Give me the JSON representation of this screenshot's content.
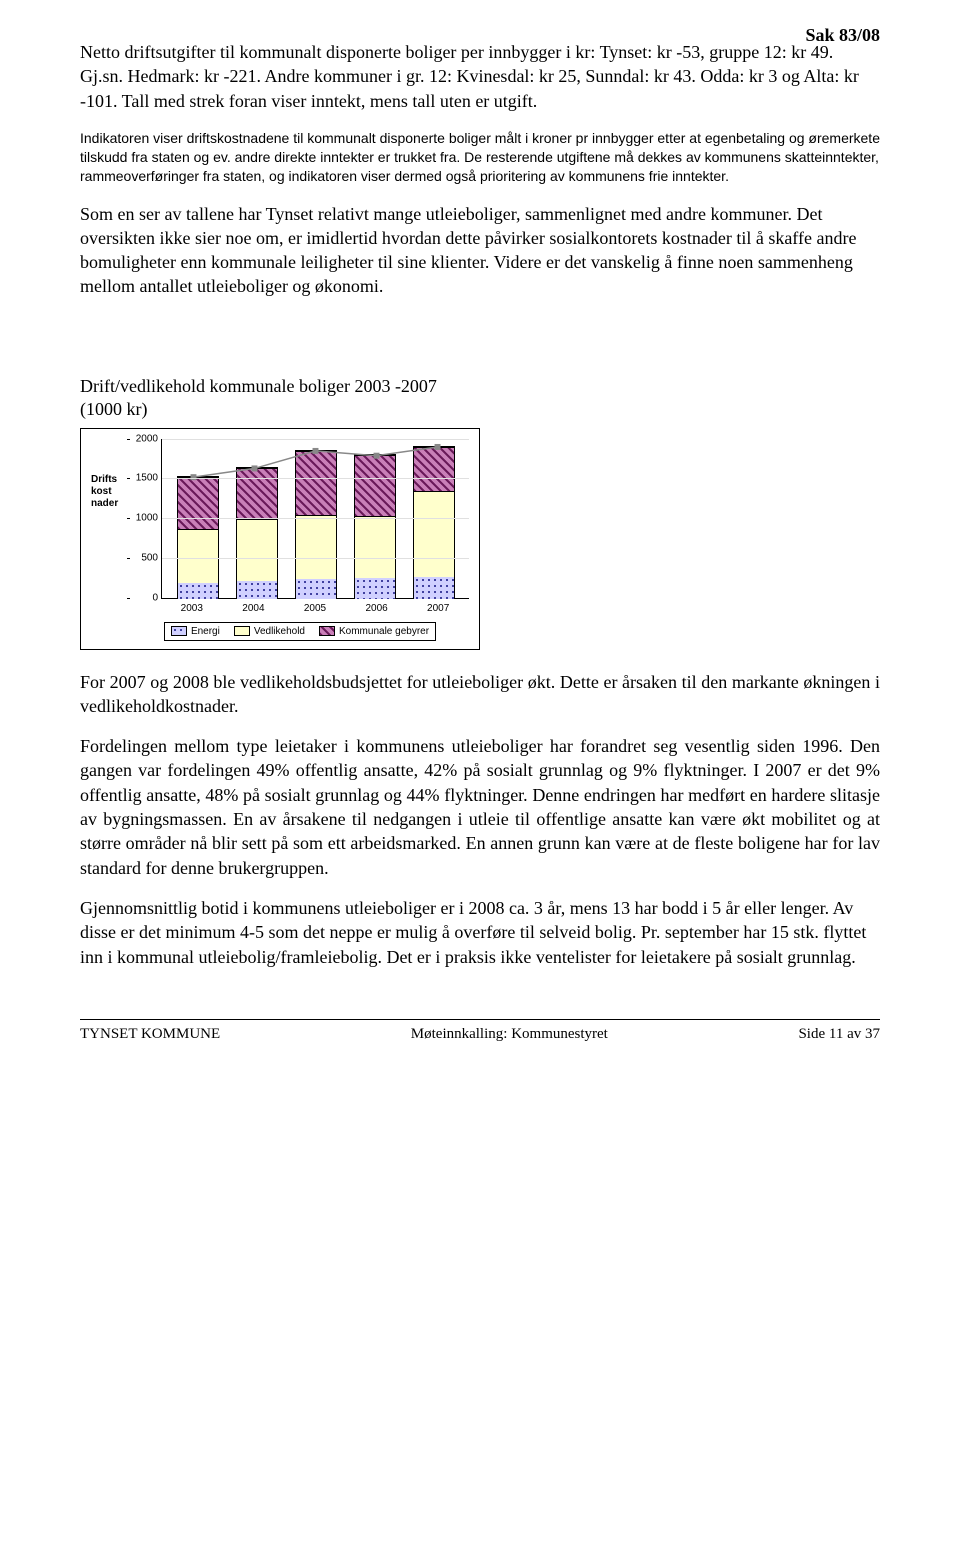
{
  "header": {
    "sak": "Sak 83/08"
  },
  "p1": "Netto driftsutgifter til kommunalt disponerte boliger per innbygger i kr: Tynset: kr -53, gruppe 12: kr 49. Gj.sn. Hedmark: kr -221. Andre kommuner i gr. 12: Kvinesdal: kr 25, Sunndal: kr 43. Odda: kr 3 og Alta: kr -101. Tall med strek foran viser inntekt, mens tall uten er utgift.",
  "p2": "Indikatoren viser driftskostnadene til kommunalt disponerte boliger målt i kroner pr innbygger etter at egenbetaling og øremerkete tilskudd fra staten og ev. andre direkte inntekter er trukket fra. De resterende utgiftene må dekkes av kommunens skatteinntekter, rammeoverføringer fra staten, og indikatoren viser dermed også prioritering av kommunens frie inntekter.",
  "p3": "Som en ser av tallene har Tynset relativt mange utleieboliger, sammenlignet med andre kommuner. Det oversikten ikke sier noe om, er imidlertid hvordan dette påvirker sosialkontorets kostnader til å skaffe andre bomuligheter enn kommunale leiligheter til sine klienter. Videre er det vanskelig å finne noen sammenheng mellom antallet utleieboliger og økonomi.",
  "chart": {
    "title": "Drift/vedlikehold kommunale boliger 2003 -2007",
    "subtitle": "(1000 kr)",
    "y_label_lines": [
      "Drifts",
      "kost",
      "nader"
    ],
    "ymax": 2000,
    "yticks": [
      0,
      500,
      1000,
      1500,
      2000
    ],
    "categories": [
      "2003",
      "2004",
      "2005",
      "2006",
      "2007"
    ],
    "series": {
      "energi": {
        "label": "Energi",
        "color": "#d0d0ff",
        "hatch": "dots",
        "values": [
          200,
          220,
          250,
          260,
          270
        ]
      },
      "vedlikehold": {
        "label": "Vedlikehold",
        "color": "#ffffcc",
        "hatch": "none",
        "values": [
          670,
          770,
          800,
          770,
          1080
        ]
      },
      "gebyrer": {
        "label": "Kommunale gebyrer",
        "color": "#c97fb8",
        "hatch": "diag",
        "values": [
          650,
          640,
          800,
          760,
          550
        ]
      }
    },
    "line_values": [
      1520,
      1630,
      1850,
      1790,
      1900
    ],
    "line_color": "#888888",
    "grid_color": "#e0e0e0",
    "bg_color": "#ffffff"
  },
  "p4": "For 2007 og 2008 ble vedlikeholdsbudsjettet for utleieboliger økt. Dette er årsaken til den markante økningen i vedlikeholdkostnader.",
  "p5": "Fordelingen mellom type leietaker i kommunens utleieboliger har forandret seg vesentlig siden 1996. Den gangen var fordelingen 49% offentlig ansatte, 42% på sosialt grunnlag og 9% flyktninger. I 2007 er det 9% offentlig ansatte, 48% på sosialt grunnlag og 44% flyktninger. Denne endringen har medført en hardere slitasje av bygningsmassen. En av årsakene til nedgangen i utleie til offentlige ansatte kan være økt mobilitet og at større områder nå blir sett på som ett arbeidsmarked. En annen grunn kan være at de fleste boligene har for lav standard for denne brukergruppen.",
  "p6": "Gjennomsnittlig botid i kommunens utleieboliger er i 2008 ca. 3 år, mens 13 har bodd i 5 år eller lenger. Av disse er det minimum 4-5 som det neppe er mulig å overføre til selveid bolig. Pr. september har 15 stk. flyttet inn i kommunal utleiebolig/framleiebolig. Det er i praksis ikke ventelister for leietakere på sosialt grunnlag.",
  "footer": {
    "left": "TYNSET KOMMUNE",
    "center": "Møteinnkalling: Kommunestyret",
    "right": "Side 11 av 37"
  }
}
